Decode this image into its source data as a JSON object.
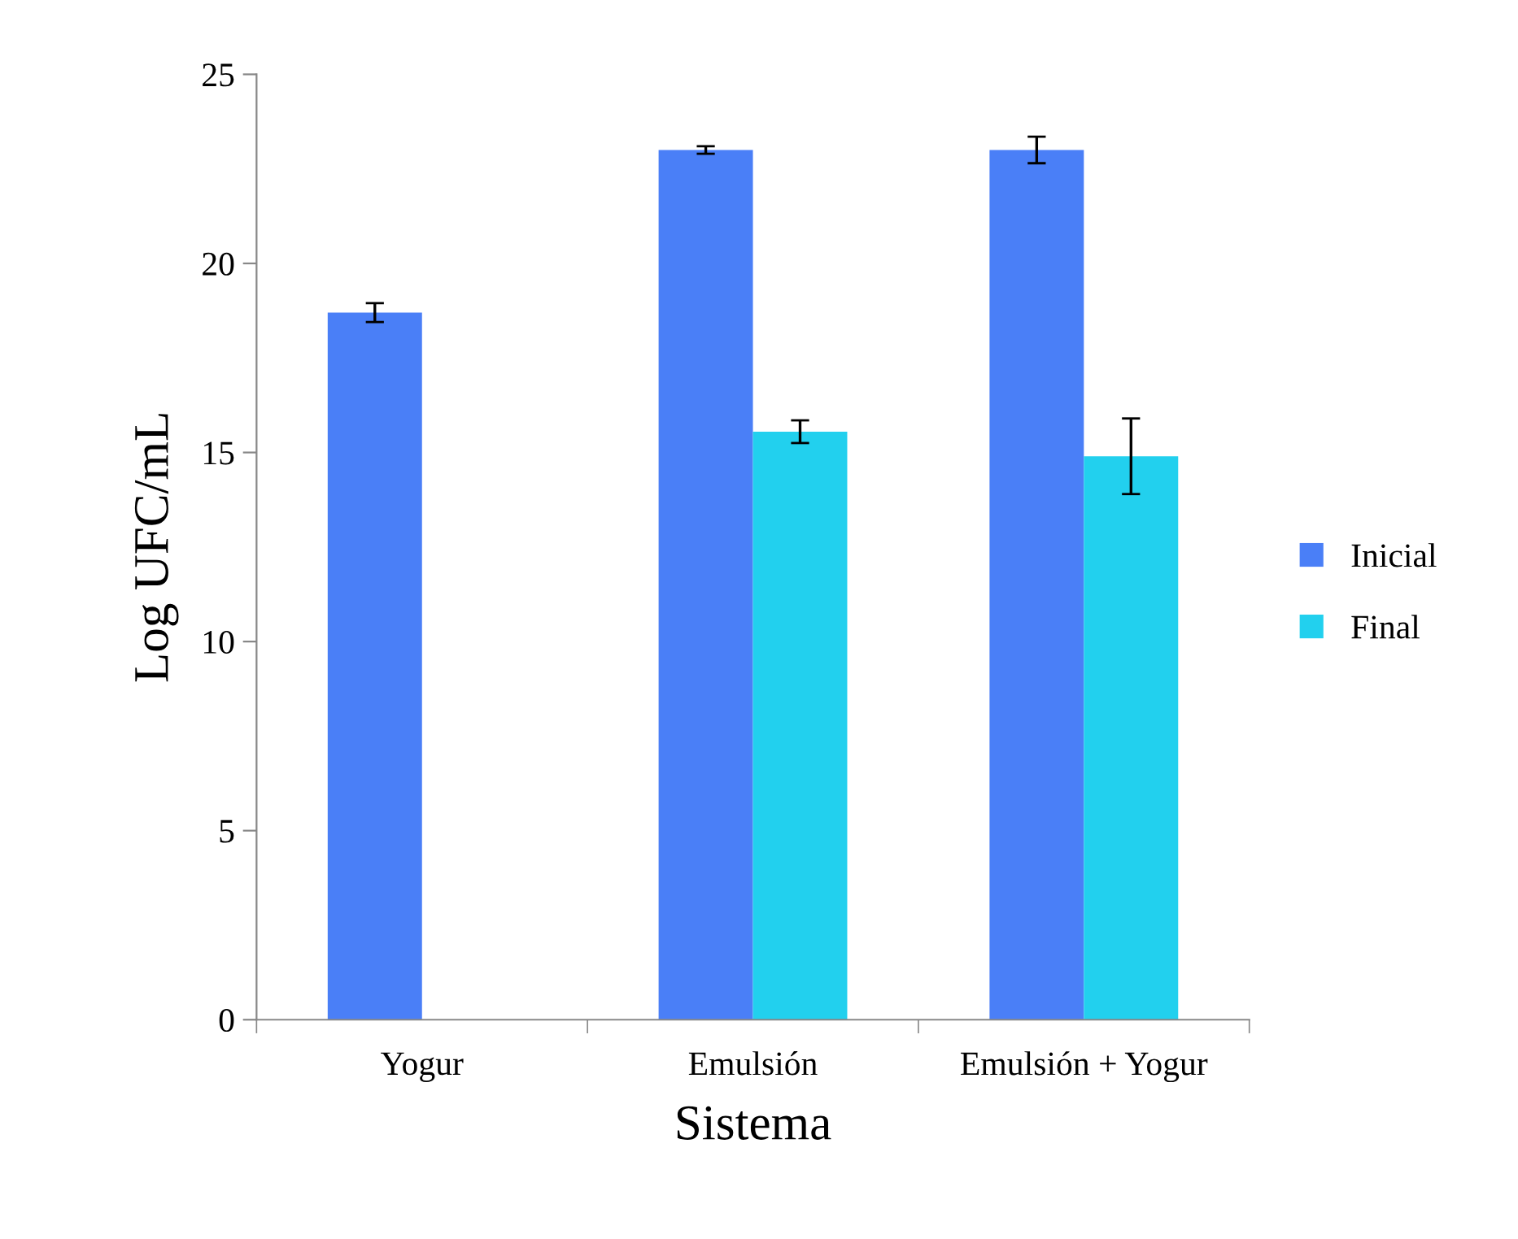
{
  "chart_data": {
    "type": "bar",
    "xlabel": "Sistema",
    "ylabel": "Log UFC/mL",
    "categories": [
      "Yogur",
      "Emulsión",
      "Emulsión + Yogur"
    ],
    "series": [
      {
        "name": "Inicial",
        "color": "#4a7ff7",
        "values": [
          18.7,
          23.0,
          23.0
        ],
        "errors": [
          0.25,
          0.1,
          0.35
        ]
      },
      {
        "name": "Final",
        "color": "#22d0ee",
        "values": [
          0,
          15.55,
          14.9
        ],
        "errors": [
          null,
          0.3,
          1.0
        ]
      }
    ],
    "ylim": [
      0,
      25
    ],
    "yticks": [
      0,
      5,
      10,
      15,
      20,
      25
    ],
    "grid": false,
    "legend": "right"
  }
}
